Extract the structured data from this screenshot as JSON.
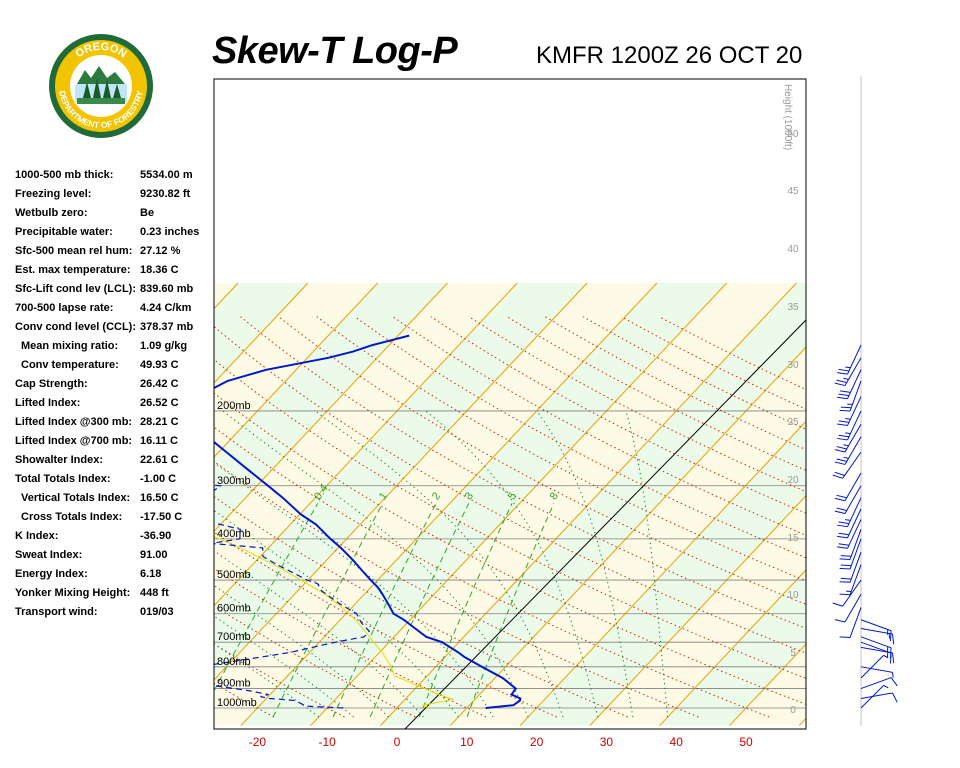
{
  "header": {
    "title": "Skew-T Log-P",
    "station": "KMFR 1200Z 26 OCT 20"
  },
  "logo": {
    "top_text": "OREGON",
    "bottom_text": "DEPARTMENT OF FORESTRY",
    "ring_color": "#1f6b3a",
    "gold_color": "#f2c400"
  },
  "indices": [
    {
      "label": "1000-500 mb thick:",
      "value": "5534.00 m",
      "indent": false
    },
    {
      "label": "Freezing level:",
      "value": "9230.82 ft",
      "indent": false
    },
    {
      "label": "Wetbulb zero:",
      "value": "Be",
      "indent": false
    },
    {
      "label": "Precipitable water:",
      "value": "0.23 inches",
      "indent": false
    },
    {
      "label": "Sfc-500 mean rel hum:",
      "value": "27.12 %",
      "indent": false
    },
    {
      "label": "Est. max temperature:",
      "value": "18.36 C",
      "indent": false
    },
    {
      "label": "Sfc-Lift cond lev (LCL):",
      "value": "839.60 mb",
      "indent": false
    },
    {
      "label": "700-500 lapse rate:",
      "value": "4.24 C/km",
      "indent": false
    },
    {
      "label": "Conv cond level (CCL):",
      "value": "378.37 mb",
      "indent": false
    },
    {
      "label": "Mean mixing ratio:",
      "value": "1.09 g/kg",
      "indent": true
    },
    {
      "label": "Conv temperature:",
      "value": "49.93 C",
      "indent": true
    },
    {
      "label": "Cap Strength:",
      "value": "26.42 C",
      "indent": false
    },
    {
      "label": "Lifted Index:",
      "value": "26.52 C",
      "indent": false
    },
    {
      "label": "Lifted Index @300 mb:",
      "value": "28.21 C",
      "indent": false
    },
    {
      "label": "Lifted Index @700 mb:",
      "value": "16.11 C",
      "indent": false
    },
    {
      "label": "Showalter Index:",
      "value": "22.61 C",
      "indent": false
    },
    {
      "label": "Total Totals Index:",
      "value": "-1.00 C",
      "indent": false
    },
    {
      "label": "Vertical Totals Index:",
      "value": "16.50 C",
      "indent": true
    },
    {
      "label": "Cross Totals Index:",
      "value": "-17.50 C",
      "indent": true
    },
    {
      "label": "K Index:",
      "value": "-36.90",
      "indent": false
    },
    {
      "label": "Sweat Index:",
      "value": "91.00",
      "indent": false
    },
    {
      "label": "Energy Index:",
      "value": "6.18",
      "indent": false
    },
    {
      "label": "Yonker Mixing Height:",
      "value": "448 ft",
      "indent": false
    },
    {
      "label": "Transport wind:",
      "value": "019/03",
      "indent": false
    }
  ],
  "chart_data": {
    "type": "line",
    "title": "Skew-T Log-P",
    "subtitle": "KMFR 1200Z 26 OCT 20",
    "x_ticks": [
      -20,
      -10,
      0,
      10,
      20,
      30,
      40,
      50
    ],
    "pressure_levels": [
      {
        "p": 200,
        "label": "200mb"
      },
      {
        "p": 300,
        "label": "300mb"
      },
      {
        "p": 400,
        "label": "400mb"
      },
      {
        "p": 500,
        "label": "500mb"
      },
      {
        "p": 600,
        "label": "600mb"
      },
      {
        "p": 700,
        "label": "700mb"
      },
      {
        "p": 800,
        "label": "800mb"
      },
      {
        "p": 900,
        "label": "900mb"
      },
      {
        "p": 1000,
        "label": "1000mb"
      }
    ],
    "height_axis_label": "Height (1000ft)",
    "height_ticks": [
      "50",
      "45",
      "40",
      "35",
      "30",
      "25",
      "20",
      "15",
      "10",
      "5",
      "0"
    ],
    "mixing_ratio_labels": [
      "0.4",
      "1",
      "2",
      "3",
      "5",
      "8"
    ],
    "temperature_profile": {
      "name": "Temperature",
      "color": "#0018cc",
      "points": [
        [
          1000,
          12.7
        ],
        [
          985,
          16.3
        ],
        [
          960,
          16.6
        ],
        [
          950,
          16.4
        ],
        [
          930,
          14.6
        ],
        [
          900,
          14.4
        ],
        [
          850,
          11.1
        ],
        [
          800,
          6.6
        ],
        [
          760,
          2.9
        ],
        [
          740,
          1.3
        ],
        [
          700,
          -2.4
        ],
        [
          680,
          -5.4
        ],
        [
          650,
          -8.1
        ],
        [
          620,
          -10.9
        ],
        [
          600,
          -13.2
        ],
        [
          570,
          -15.2
        ],
        [
          540,
          -17.4
        ],
        [
          520,
          -19.0
        ],
        [
          500,
          -21.0
        ],
        [
          480,
          -23.0
        ],
        [
          450,
          -26.1
        ],
        [
          420,
          -29.6
        ],
        [
          400,
          -32.3
        ],
        [
          370,
          -36.3
        ],
        [
          350,
          -39.9
        ],
        [
          320,
          -44.7
        ],
        [
          300,
          -48.4
        ],
        [
          270,
          -54.5
        ],
        [
          250,
          -58.9
        ],
        [
          230,
          -63.7
        ],
        [
          215,
          -68.0
        ],
        [
          205,
          -71.3
        ],
        [
          190,
          -71.2
        ],
        [
          170,
          -68.3
        ],
        [
          160,
          -64.3
        ],
        [
          150,
          -57.0
        ],
        [
          145,
          -54.3
        ],
        [
          140,
          -52.4
        ],
        [
          133,
          -48.4
        ]
      ]
    },
    "dewpoint_profile": {
      "name": "Dewpoint",
      "color": "#0018cc",
      "points": [
        [
          1000,
          -7.7
        ],
        [
          990,
          -13.3
        ],
        [
          960,
          -15.6
        ],
        [
          950,
          -19.5
        ],
        [
          940,
          -21.1
        ],
        [
          930,
          -20.2
        ],
        [
          910,
          -23.6
        ],
        [
          890,
          -28.3
        ],
        [
          860,
          -35.7
        ],
        [
          840,
          -42.1
        ],
        [
          820,
          -39.1
        ],
        [
          800,
          -34.0
        ],
        [
          760,
          -26.5
        ],
        [
          740,
          -22.8
        ],
        [
          700,
          -17.7
        ],
        [
          680,
          -14.3
        ],
        [
          660,
          -14.3
        ],
        [
          630,
          -16.6
        ],
        [
          600,
          -18.5
        ],
        [
          570,
          -22.1
        ],
        [
          530,
          -26.6
        ],
        [
          510,
          -28.1
        ],
        [
          500,
          -30.1
        ],
        [
          480,
          -33.2
        ],
        [
          460,
          -36.5
        ],
        [
          440,
          -39.6
        ],
        [
          420,
          -40.8
        ],
        [
          410,
          -48.8
        ],
        [
          400,
          -45.3
        ],
        [
          380,
          -46.5
        ],
        [
          360,
          -53.6
        ],
        [
          340,
          -55.7
        ],
        [
          320,
          -56.0
        ],
        [
          300,
          -55.2
        ],
        [
          290,
          -64.5
        ],
        [
          275,
          -66.9
        ],
        [
          260,
          -71.6
        ],
        [
          245,
          -73.2
        ],
        [
          230,
          -79.9
        ],
        [
          215,
          -77.5
        ],
        [
          200,
          -82.4
        ],
        [
          185,
          -81.5
        ],
        [
          175,
          -83.2
        ],
        [
          165,
          -86.9
        ],
        [
          150,
          -87.1
        ],
        [
          145,
          -87.3
        ],
        [
          140,
          -89.4
        ],
        [
          133,
          -91.9
        ]
      ]
    },
    "parcel_profile": {
      "name": "Parcel",
      "color": "#e8d800",
      "points": [
        [
          1000,
          4.6
        ],
        [
          985,
          3.3
        ],
        [
          955,
          6.8
        ],
        [
          920,
          3.3
        ],
        [
          890,
          0.3
        ],
        [
          840,
          -4.7
        ],
        [
          800,
          -6.4
        ],
        [
          740,
          -9.6
        ],
        [
          700,
          -12.2
        ],
        [
          660,
          -14.9
        ],
        [
          620,
          -17.8
        ],
        [
          580,
          -21.4
        ],
        [
          540,
          -25.6
        ],
        [
          500,
          -31.0
        ],
        [
          460,
          -36.9
        ],
        [
          420,
          -44.0
        ],
        [
          390,
          -50.4
        ]
      ]
    },
    "wind_barbs": [
      {
        "p": 1000,
        "dir": 45,
        "spd": 5
      },
      {
        "p": 950,
        "dir": 80,
        "spd": 10
      },
      {
        "p": 900,
        "dir": 70,
        "spd": 10
      },
      {
        "p": 850,
        "dir": 45,
        "spd": 5
      },
      {
        "p": 800,
        "dir": 100,
        "spd": 5
      },
      {
        "p": 720,
        "dir": 100,
        "spd": 10
      },
      {
        "p": 700,
        "dir": 110,
        "spd": 15
      },
      {
        "p": 680,
        "dir": 110,
        "spd": 15
      },
      {
        "p": 650,
        "dir": 100,
        "spd": 15
      },
      {
        "p": 620,
        "dir": 110,
        "spd": 15
      },
      {
        "p": 580,
        "dir": 200,
        "spd": 10
      },
      {
        "p": 540,
        "dir": 210,
        "spd": 10
      },
      {
        "p": 500,
        "dir": 215,
        "spd": 10
      },
      {
        "p": 460,
        "dir": 200,
        "spd": 15
      },
      {
        "p": 430,
        "dir": 200,
        "spd": 20
      },
      {
        "p": 400,
        "dir": 200,
        "spd": 20
      },
      {
        "p": 380,
        "dir": 200,
        "spd": 20
      },
      {
        "p": 360,
        "dir": 205,
        "spd": 20
      },
      {
        "p": 340,
        "dir": 205,
        "spd": 20
      },
      {
        "p": 320,
        "dir": 205,
        "spd": 25
      },
      {
        "p": 300,
        "dir": 210,
        "spd": 20
      },
      {
        "p": 280,
        "dir": 210,
        "spd": 20
      },
      {
        "p": 250,
        "dir": 215,
        "spd": 20
      },
      {
        "p": 230,
        "dir": 210,
        "spd": 25
      },
      {
        "p": 215,
        "dir": 210,
        "spd": 25
      },
      {
        "p": 200,
        "dir": 205,
        "spd": 25
      },
      {
        "p": 185,
        "dir": 205,
        "spd": 25
      },
      {
        "p": 170,
        "dir": 200,
        "spd": 25
      },
      {
        "p": 160,
        "dir": 205,
        "spd": 30
      },
      {
        "p": 150,
        "dir": 210,
        "spd": 25
      },
      {
        "p": 140,
        "dir": 205,
        "spd": 25
      }
    ],
    "colors": {
      "background_shade_a": "#ecfbe9",
      "background_shade_b": "#fdfbe6",
      "isotherm": "#e8a000",
      "dry_adiabat": "#c82800",
      "moist_adiabat": "#007a20",
      "mixing_ratio": "#2ba82b",
      "isobar": "#808080",
      "wind_barb": "#0018cc",
      "x_tick": "#cc0000"
    }
  }
}
